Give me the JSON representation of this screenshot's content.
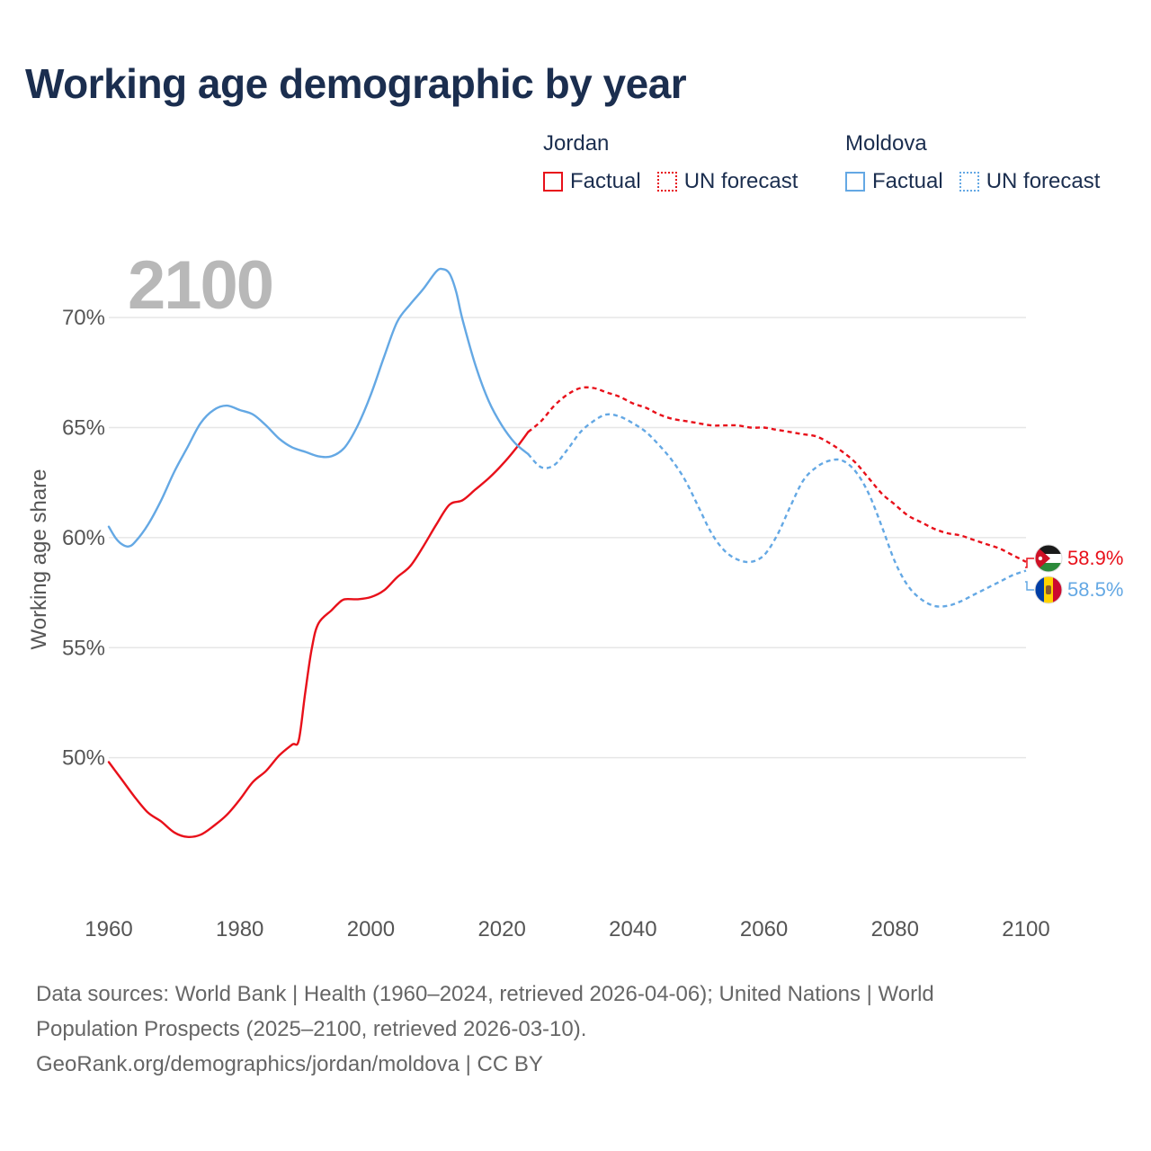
{
  "title": "Working age demographic by year",
  "legend": {
    "groups": [
      {
        "country": "Jordan",
        "factual_label": "Factual",
        "forecast_label": "UN forecast",
        "color": "#e8101a"
      },
      {
        "country": "Moldova",
        "factual_label": "Factual",
        "forecast_label": "UN forecast",
        "color": "#64a8e4"
      }
    ]
  },
  "year_label": "2100",
  "end_labels": {
    "jordan": "58.9%",
    "moldova": "58.5%"
  },
  "footer": {
    "line1": "Data sources: World Bank | Health (1960–2024, retrieved 2026-04-06); United Nations | World",
    "line2": "Population Prospects (2025–2100, retrieved 2026-03-10).",
    "line3": "GeoRank.org/demographics/jordan/moldova | CC BY"
  },
  "chart_data": {
    "type": "line",
    "title": "Working age demographic by year",
    "xlabel": "",
    "ylabel": "Working age share",
    "xlim": [
      1960,
      2100
    ],
    "ylim": [
      45,
      72.5
    ],
    "x_ticks": [
      1960,
      1980,
      2000,
      2020,
      2040,
      2060,
      2080,
      2100
    ],
    "x_tick_labels": [
      "1960",
      "1980",
      "2000",
      "2020",
      "2040",
      "2060",
      "2080",
      "2100"
    ],
    "y_ticks": [
      50,
      55,
      60,
      65,
      70
    ],
    "y_tick_labels": [
      "50%",
      "55%",
      "60%",
      "65%",
      "70%"
    ],
    "grid": true,
    "series": [
      {
        "name": "Jordan",
        "color": "#e8101a",
        "factual": {
          "x": [
            1960,
            1962,
            1964,
            1966,
            1968,
            1970,
            1972,
            1974,
            1976,
            1978,
            1980,
            1982,
            1984,
            1986,
            1988,
            1989,
            1990,
            1991,
            1992,
            1994,
            1995,
            1996,
            1998,
            2000,
            2002,
            2004,
            2006,
            2008,
            2010,
            2012,
            2014,
            2016,
            2018,
            2020,
            2022,
            2024
          ],
          "y": [
            49.8,
            49.0,
            48.2,
            47.5,
            47.1,
            46.6,
            46.4,
            46.5,
            46.9,
            47.4,
            48.1,
            48.9,
            49.4,
            50.1,
            50.6,
            50.8,
            53.0,
            55.0,
            56.1,
            56.7,
            57.0,
            57.2,
            57.2,
            57.3,
            57.6,
            58.2,
            58.7,
            59.6,
            60.6,
            61.5,
            61.7,
            62.2,
            62.7,
            63.3,
            64.0,
            64.8
          ]
        },
        "forecast": {
          "x": [
            2024,
            2026,
            2028,
            2030,
            2032,
            2034,
            2036,
            2038,
            2040,
            2042,
            2044,
            2046,
            2048,
            2050,
            2052,
            2054,
            2056,
            2058,
            2060,
            2062,
            2064,
            2066,
            2068,
            2070,
            2072,
            2074,
            2076,
            2078,
            2080,
            2082,
            2084,
            2086,
            2088,
            2090,
            2092,
            2094,
            2096,
            2098,
            2100
          ],
          "y": [
            64.8,
            65.3,
            66.0,
            66.5,
            66.8,
            66.8,
            66.6,
            66.4,
            66.1,
            65.9,
            65.6,
            65.4,
            65.3,
            65.2,
            65.1,
            65.1,
            65.1,
            65.0,
            65.0,
            64.9,
            64.8,
            64.7,
            64.6,
            64.3,
            63.9,
            63.4,
            62.7,
            62.0,
            61.5,
            61.0,
            60.7,
            60.4,
            60.2,
            60.1,
            59.9,
            59.7,
            59.5,
            59.2,
            58.9
          ]
        }
      },
      {
        "name": "Moldova",
        "color": "#64a8e4",
        "factual": {
          "x": [
            1960,
            1961,
            1962,
            1963,
            1964,
            1966,
            1968,
            1970,
            1972,
            1974,
            1976,
            1978,
            1980,
            1982,
            1984,
            1986,
            1988,
            1990,
            1992,
            1994,
            1996,
            1998,
            2000,
            2002,
            2004,
            2006,
            2008,
            2010,
            2011,
            2012,
            2013,
            2014,
            2016,
            2018,
            2020,
            2022,
            2024
          ],
          "y": [
            60.5,
            60.0,
            59.7,
            59.6,
            59.8,
            60.6,
            61.7,
            63.0,
            64.1,
            65.2,
            65.8,
            66.0,
            65.8,
            65.6,
            65.1,
            64.5,
            64.1,
            63.9,
            63.7,
            63.7,
            64.1,
            65.1,
            66.5,
            68.2,
            69.8,
            70.6,
            71.3,
            72.1,
            72.2,
            72.0,
            71.2,
            69.9,
            67.8,
            66.2,
            65.1,
            64.3,
            63.8
          ]
        },
        "forecast": {
          "x": [
            2024,
            2026,
            2028,
            2030,
            2032,
            2034,
            2036,
            2038,
            2040,
            2042,
            2044,
            2046,
            2048,
            2050,
            2052,
            2054,
            2056,
            2058,
            2060,
            2062,
            2064,
            2066,
            2068,
            2070,
            2072,
            2074,
            2076,
            2078,
            2080,
            2082,
            2084,
            2086,
            2088,
            2090,
            2092,
            2094,
            2096,
            2098,
            2100
          ],
          "y": [
            63.8,
            63.2,
            63.3,
            64.0,
            64.8,
            65.3,
            65.6,
            65.5,
            65.2,
            64.8,
            64.2,
            63.5,
            62.6,
            61.4,
            60.2,
            59.4,
            59.0,
            58.9,
            59.2,
            60.1,
            61.4,
            62.6,
            63.2,
            63.5,
            63.5,
            63.0,
            62.0,
            60.5,
            58.9,
            57.8,
            57.2,
            56.9,
            56.9,
            57.1,
            57.4,
            57.7,
            58.0,
            58.3,
            58.5
          ]
        }
      }
    ]
  }
}
